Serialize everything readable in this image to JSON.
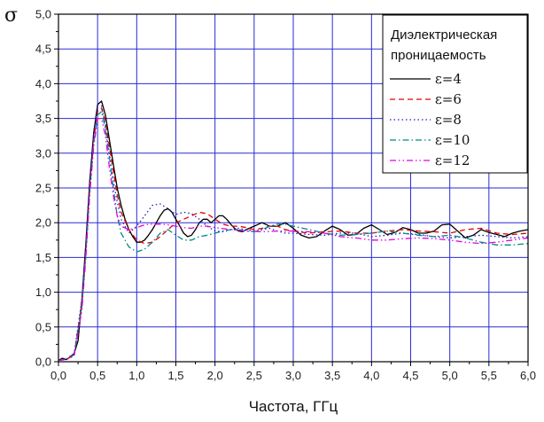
{
  "chart_data": {
    "type": "line",
    "title": "",
    "xlabel": "Частота, ГГц",
    "ylabel": "σ",
    "xlim": [
      0.0,
      6.0
    ],
    "ylim": [
      0.0,
      5.0
    ],
    "x_ticks": [
      "0,0",
      "0,5",
      "1,0",
      "1,5",
      "2,0",
      "2,5",
      "3,0",
      "3,5",
      "4,0",
      "4,5",
      "5,0",
      "5,5",
      "6,0"
    ],
    "y_ticks": [
      "0,0",
      "0,5",
      "1,0",
      "1,5",
      "2,0",
      "2,5",
      "3,0",
      "3,5",
      "4,0",
      "4,5",
      "5,0"
    ],
    "grid": true,
    "legend_position": "top-right",
    "legend_title": [
      "Диэлектрическая",
      "проницаемость"
    ],
    "series": [
      {
        "name": "ε=4",
        "color": "#000000",
        "dash": "solid",
        "x": [
          0,
          0.05,
          0.1,
          0.15,
          0.2,
          0.25,
          0.3,
          0.35,
          0.4,
          0.45,
          0.5,
          0.55,
          0.6,
          0.65,
          0.7,
          0.75,
          0.8,
          0.85,
          0.9,
          0.95,
          1.0,
          1.05,
          1.1,
          1.15,
          1.2,
          1.25,
          1.3,
          1.35,
          1.4,
          1.45,
          1.5,
          1.55,
          1.6,
          1.65,
          1.7,
          1.75,
          1.8,
          1.85,
          1.9,
          1.95,
          2.0,
          2.05,
          2.1,
          2.15,
          2.2,
          2.25,
          2.3,
          2.35,
          2.4,
          2.5,
          2.6,
          2.7,
          2.8,
          2.9,
          3.0,
          3.1,
          3.2,
          3.3,
          3.4,
          3.5,
          3.6,
          3.7,
          3.8,
          3.9,
          4.0,
          4.1,
          4.2,
          4.3,
          4.4,
          4.5,
          4.6,
          4.7,
          4.8,
          4.9,
          5.0,
          5.1,
          5.2,
          5.3,
          5.4,
          5.5,
          5.6,
          5.7,
          5.8,
          5.9,
          6.0
        ],
        "y": [
          0.02,
          0.05,
          0.03,
          0.07,
          0.12,
          0.3,
          0.9,
          1.7,
          2.6,
          3.3,
          3.7,
          3.75,
          3.55,
          3.2,
          2.85,
          2.5,
          2.25,
          2.05,
          1.9,
          1.8,
          1.72,
          1.72,
          1.75,
          1.82,
          1.9,
          2.0,
          2.1,
          2.18,
          2.2,
          2.15,
          2.05,
          1.95,
          1.85,
          1.8,
          1.82,
          1.9,
          2.0,
          2.05,
          2.05,
          2.0,
          2.05,
          2.1,
          2.1,
          2.05,
          1.98,
          1.92,
          1.88,
          1.87,
          1.9,
          1.95,
          2.0,
          1.95,
          1.95,
          2.0,
          1.92,
          1.82,
          1.78,
          1.8,
          1.88,
          1.95,
          1.9,
          1.82,
          1.83,
          1.92,
          1.97,
          1.9,
          1.83,
          1.86,
          1.93,
          1.9,
          1.85,
          1.85,
          1.88,
          1.97,
          1.98,
          1.88,
          1.78,
          1.82,
          1.9,
          1.86,
          1.83,
          1.8,
          1.85,
          1.88,
          1.9
        ]
      },
      {
        "name": "ε=6",
        "color": "#e00000",
        "dash": "dash",
        "x": [
          0,
          0.1,
          0.2,
          0.3,
          0.35,
          0.4,
          0.45,
          0.5,
          0.55,
          0.6,
          0.65,
          0.7,
          0.75,
          0.8,
          0.9,
          1.0,
          1.1,
          1.2,
          1.3,
          1.4,
          1.5,
          1.6,
          1.7,
          1.8,
          1.9,
          2.0,
          2.1,
          2.2,
          2.3,
          2.4,
          2.5,
          2.6,
          2.7,
          2.8,
          2.9,
          3.0,
          3.2,
          3.4,
          3.6,
          3.8,
          4.0,
          4.2,
          4.4,
          4.6,
          4.8,
          5.0,
          5.2,
          5.4,
          5.6,
          5.8,
          6.0
        ],
        "y": [
          0.02,
          0.03,
          0.1,
          0.85,
          1.6,
          2.5,
          3.2,
          3.6,
          3.65,
          3.45,
          3.1,
          2.75,
          2.4,
          2.15,
          1.9,
          1.75,
          1.7,
          1.72,
          1.8,
          1.9,
          2.0,
          2.05,
          2.1,
          2.15,
          2.13,
          2.05,
          1.98,
          1.95,
          1.95,
          1.93,
          1.9,
          1.92,
          1.95,
          1.95,
          1.9,
          1.88,
          1.85,
          1.87,
          1.88,
          1.85,
          1.85,
          1.88,
          1.9,
          1.88,
          1.87,
          1.85,
          1.9,
          1.92,
          1.85,
          1.83,
          1.85
        ]
      },
      {
        "name": "ε=8",
        "color": "#1a1ac8",
        "dash": "dot",
        "x": [
          0,
          0.1,
          0.2,
          0.3,
          0.35,
          0.4,
          0.45,
          0.5,
          0.55,
          0.6,
          0.65,
          0.7,
          0.75,
          0.8,
          0.9,
          1.0,
          1.1,
          1.2,
          1.3,
          1.4,
          1.5,
          1.6,
          1.7,
          1.8,
          1.9,
          2.0,
          2.1,
          2.2,
          2.3,
          2.4,
          2.5,
          2.6,
          2.7,
          2.8,
          2.9,
          3.0,
          3.2,
          3.4,
          3.6,
          3.8,
          4.0,
          4.2,
          4.4,
          4.6,
          4.8,
          5.0,
          5.2,
          5.4,
          5.6,
          5.8,
          6.0
        ],
        "y": [
          0.02,
          0.04,
          0.12,
          0.9,
          1.7,
          2.6,
          3.3,
          3.7,
          3.68,
          3.4,
          3.0,
          2.6,
          2.3,
          2.05,
          1.85,
          1.95,
          2.1,
          2.25,
          2.27,
          2.2,
          2.12,
          2.15,
          2.13,
          2.05,
          1.95,
          1.88,
          1.87,
          1.9,
          1.92,
          1.9,
          1.88,
          1.9,
          1.92,
          1.88,
          1.85,
          1.85,
          1.83,
          1.82,
          1.85,
          1.85,
          1.8,
          1.82,
          1.85,
          1.83,
          1.8,
          1.78,
          1.8,
          1.82,
          1.8,
          1.78,
          1.8
        ]
      },
      {
        "name": "ε=10",
        "color": "#008a8a",
        "dash": "dashdot",
        "x": [
          0,
          0.1,
          0.2,
          0.3,
          0.35,
          0.4,
          0.45,
          0.5,
          0.55,
          0.6,
          0.65,
          0.7,
          0.75,
          0.8,
          0.9,
          1.0,
          1.1,
          1.2,
          1.3,
          1.4,
          1.5,
          1.6,
          1.7,
          1.8,
          1.9,
          2.0,
          2.1,
          2.2,
          2.3,
          2.4,
          2.5,
          2.6,
          2.7,
          2.8,
          2.9,
          3.0,
          3.2,
          3.4,
          3.6,
          3.8,
          4.0,
          4.2,
          4.4,
          4.6,
          4.8,
          5.0,
          5.2,
          5.4,
          5.6,
          5.8,
          6.0
        ],
        "y": [
          0.02,
          0.03,
          0.1,
          0.8,
          1.55,
          2.45,
          3.15,
          3.55,
          3.6,
          3.35,
          2.95,
          2.5,
          2.1,
          1.85,
          1.65,
          1.58,
          1.62,
          1.72,
          1.85,
          1.9,
          1.82,
          1.75,
          1.75,
          1.8,
          1.82,
          1.85,
          1.88,
          1.9,
          1.9,
          1.88,
          1.87,
          1.9,
          1.95,
          1.98,
          1.98,
          1.95,
          1.9,
          1.85,
          1.82,
          1.83,
          1.85,
          1.88,
          1.85,
          1.82,
          1.8,
          1.82,
          1.78,
          1.72,
          1.68,
          1.68,
          1.7
        ]
      },
      {
        "name": "ε=12",
        "color": "#e000e0",
        "dash": "dashdotdot",
        "x": [
          0,
          0.1,
          0.2,
          0.3,
          0.35,
          0.4,
          0.45,
          0.5,
          0.55,
          0.6,
          0.65,
          0.7,
          0.75,
          0.8,
          0.9,
          1.0,
          1.1,
          1.2,
          1.3,
          1.4,
          1.5,
          1.6,
          1.7,
          1.8,
          1.9,
          2.0,
          2.2,
          2.4,
          2.6,
          2.8,
          3.0,
          3.2,
          3.4,
          3.6,
          3.8,
          4.0,
          4.2,
          4.4,
          4.6,
          4.8,
          5.0,
          5.2,
          5.4,
          5.6,
          5.8,
          6.0
        ],
        "y": [
          0.02,
          0.03,
          0.08,
          0.75,
          1.5,
          2.4,
          3.1,
          3.5,
          3.5,
          3.25,
          2.8,
          2.4,
          2.1,
          1.95,
          1.9,
          1.93,
          1.97,
          1.98,
          1.98,
          1.97,
          1.95,
          1.93,
          1.92,
          1.95,
          1.95,
          1.93,
          1.9,
          1.88,
          1.87,
          1.88,
          1.88,
          1.87,
          1.85,
          1.8,
          1.78,
          1.75,
          1.75,
          1.77,
          1.78,
          1.77,
          1.75,
          1.72,
          1.7,
          1.72,
          1.75,
          1.78
        ]
      }
    ]
  }
}
